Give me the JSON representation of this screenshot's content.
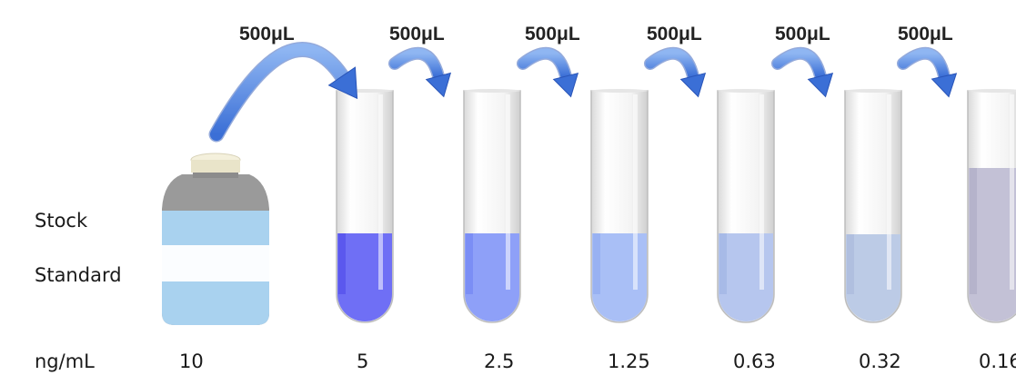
{
  "labels": {
    "stock": "Stock",
    "standard": "Standard",
    "unit": "ng/mL"
  },
  "stock_concentration": "10",
  "transfer_volume": "500μL",
  "transfers": [
    "500μL",
    "500μL",
    "500μL",
    "500μL",
    "500μL",
    "500μL"
  ],
  "tubes": [
    {
      "concentration": "5",
      "liquid_color": "#6f6ff5",
      "liquid_dark": "#4a45e8"
    },
    {
      "concentration": "2.5",
      "liquid_color": "#8ea0f8",
      "liquid_dark": "#6c7ff2"
    },
    {
      "concentration": "1.25",
      "liquid_color": "#a9bff6",
      "liquid_dark": "#8aa6ee"
    },
    {
      "concentration": "0.63",
      "liquid_color": "#b6c6ee",
      "liquid_dark": "#9bb0e2"
    },
    {
      "concentration": "0.32",
      "liquid_color": "#bccbe6",
      "liquid_dark": "#a6b7d8"
    },
    {
      "concentration": "0.16",
      "liquid_color": "#c3c1d6",
      "liquid_dark": "#aaa8c2"
    }
  ],
  "colors": {
    "arrow": "#3b6fd6",
    "arrow_light": "#8fb6f2",
    "bottle_cap": "#f4f0dc",
    "bottle_shoulder": "#9a9a9a",
    "bottle_blue": "#a9d2ef"
  }
}
